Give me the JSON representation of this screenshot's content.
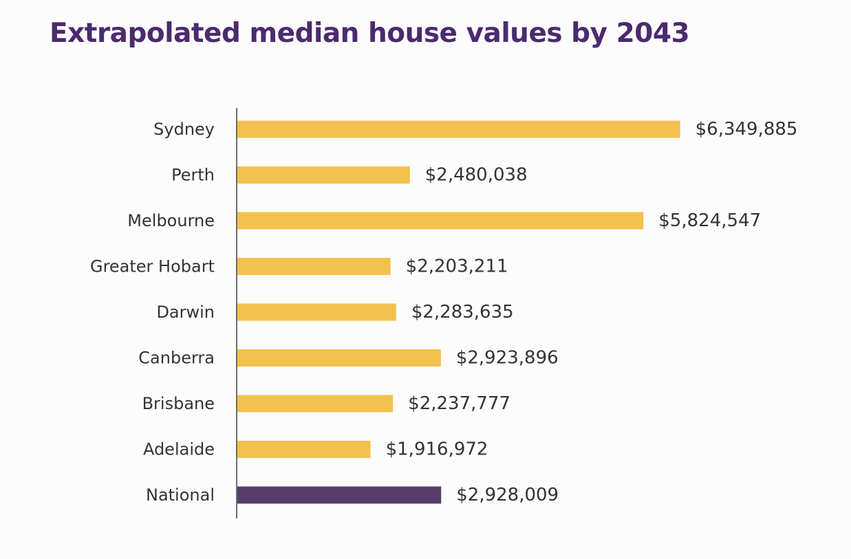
{
  "chart_data": {
    "type": "bar",
    "orientation": "horizontal",
    "title": "Extrapolated median house values by 2043",
    "xlabel": "",
    "ylabel": "",
    "xlim": [
      0,
      6600000
    ],
    "grid": false,
    "legend": "none",
    "categories": [
      "Sydney",
      "Perth",
      "Melbourne",
      "Greater Hobart",
      "Darwin",
      "Canberra",
      "Brisbane",
      "Adelaide",
      "National"
    ],
    "values": [
      6349885,
      2480038,
      5824547,
      2203211,
      2283635,
      2923896,
      2237777,
      1916972,
      2928009
    ],
    "value_labels": [
      "$6,349,885",
      "$2,480,038",
      "$5,824,547",
      "$2,203,211",
      "$2,283,635",
      "$2,923,896",
      "$2,237,777",
      "$1,916,972",
      "$2,928,009"
    ],
    "bar_colors": [
      "#f2c14e",
      "#f2c14e",
      "#f2c14e",
      "#f2c14e",
      "#f2c14e",
      "#f2c14e",
      "#f2c14e",
      "#f2c14e",
      "#573d6b"
    ]
  },
  "colors": {
    "title": "#4b2a6e",
    "axis": "#6e6e6e",
    "text": "#333333",
    "background": "#fcfcfc"
  }
}
